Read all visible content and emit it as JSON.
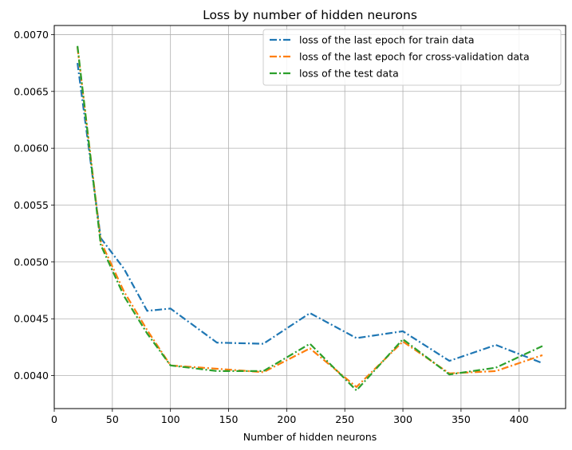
{
  "chart_data": {
    "type": "line",
    "title": "Loss by number of hidden neurons",
    "xlabel": "Number of hidden neurons",
    "ylabel": "",
    "xlim": [
      0,
      440
    ],
    "ylim": [
      0.00371,
      0.00708
    ],
    "xticks": [
      0,
      50,
      100,
      150,
      200,
      250,
      300,
      350,
      400
    ],
    "yticks": [
      0.004,
      0.0045,
      0.005,
      0.0055,
      0.006,
      0.0065,
      0.007
    ],
    "xtick_labels": [
      "0",
      "50",
      "100",
      "150",
      "200",
      "250",
      "300",
      "350",
      "400"
    ],
    "ytick_labels": [
      "0.0040",
      "0.0045",
      "0.0050",
      "0.0055",
      "0.0060",
      "0.0065",
      "0.0070"
    ],
    "grid": true,
    "legend_position": "top-right",
    "x": [
      20,
      40,
      60,
      80,
      100,
      140,
      180,
      220,
      260,
      300,
      340,
      380,
      420
    ],
    "series": [
      {
        "name": "loss of the last epoch for train data",
        "color": "#1f77b4",
        "values": [
          0.00675,
          0.00521,
          0.00494,
          0.00457,
          0.00459,
          0.00429,
          0.00428,
          0.00455,
          0.00433,
          0.00439,
          0.00413,
          0.00427,
          0.00411
        ]
      },
      {
        "name": "loss of the last epoch for cross-validation data",
        "color": "#ff7f0e",
        "values": [
          0.00689,
          0.00518,
          0.00474,
          0.0044,
          0.00409,
          0.00406,
          0.00403,
          0.00424,
          0.0039,
          0.0043,
          0.00402,
          0.00404,
          0.00418
        ]
      },
      {
        "name": "loss of the test data",
        "color": "#2ca02c",
        "values": [
          0.0069,
          0.00515,
          0.0047,
          0.00437,
          0.00409,
          0.00404,
          0.00404,
          0.00428,
          0.00387,
          0.00432,
          0.00401,
          0.00407,
          0.00426
        ]
      }
    ]
  }
}
